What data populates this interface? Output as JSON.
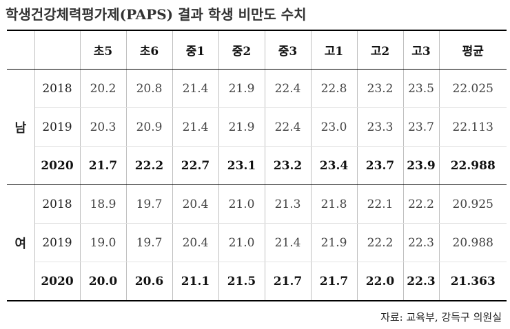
{
  "title": "학생건강체력평가제(PAPS) 결과 학생 비만도 수치",
  "table": {
    "headers": [
      "",
      "",
      "초5",
      "초6",
      "중1",
      "중2",
      "중3",
      "고1",
      "고2",
      "고3",
      "평균"
    ],
    "groups": [
      {
        "gender": "남",
        "rows": [
          {
            "year": "2018",
            "values": [
              "20.2",
              "20.8",
              "21.4",
              "21.9",
              "22.4",
              "22.8",
              "23.2",
              "23.5",
              "22.025"
            ]
          },
          {
            "year": "2019",
            "values": [
              "20.3",
              "20.9",
              "21.4",
              "21.9",
              "22.4",
              "23.0",
              "23.3",
              "23.7",
              "22.113"
            ]
          },
          {
            "year": "2020",
            "values": [
              "21.7",
              "22.2",
              "22.7",
              "23.1",
              "23.2",
              "23.4",
              "23.7",
              "23.9",
              "22.988"
            ]
          }
        ]
      },
      {
        "gender": "여",
        "rows": [
          {
            "year": "2018",
            "values": [
              "18.9",
              "19.7",
              "20.4",
              "21.0",
              "21.3",
              "21.8",
              "22.1",
              "22.2",
              "20.925"
            ]
          },
          {
            "year": "2019",
            "values": [
              "19.0",
              "19.7",
              "20.4",
              "21.0",
              "21.4",
              "21.9",
              "22.2",
              "22.3",
              "20.988"
            ]
          },
          {
            "year": "2020",
            "values": [
              "20.0",
              "20.6",
              "21.1",
              "21.5",
              "21.7",
              "21.7",
              "22.0",
              "22.3",
              "21.363"
            ]
          }
        ]
      }
    ]
  },
  "source": "자료: 교육부, 강득구 의원실"
}
